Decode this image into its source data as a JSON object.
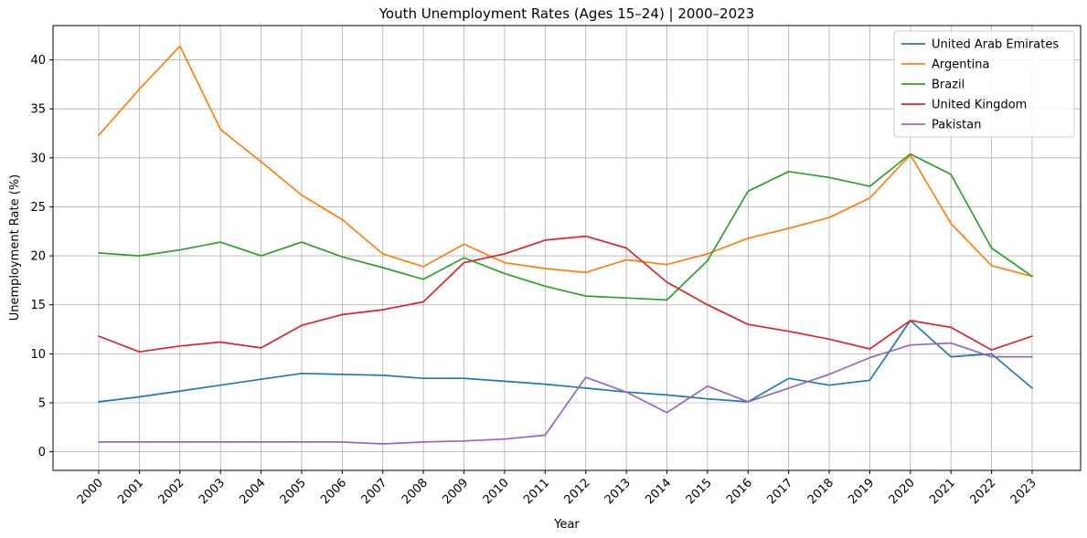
{
  "chart_data": {
    "type": "line",
    "title": "Youth Unemployment Rates (Ages 15–24) | 2000–2023",
    "xlabel": "Year",
    "ylabel": "Unemployment Rate (%)",
    "x": [
      "2000",
      "2001",
      "2002",
      "2003",
      "2004",
      "2005",
      "2006",
      "2007",
      "2008",
      "2009",
      "2010",
      "2011",
      "2012",
      "2013",
      "2014",
      "2015",
      "2016",
      "2017",
      "2018",
      "2019",
      "2020",
      "2021",
      "2022",
      "2023"
    ],
    "yticks": [
      "0",
      "5",
      "10",
      "15",
      "20",
      "25",
      "30",
      "35",
      "40"
    ],
    "ylim": [
      -1.9,
      43.5
    ],
    "grid": true,
    "legend_position": "top-right",
    "series": [
      {
        "name": "United Arab Emirates",
        "color": "#1f77b4",
        "values": [
          5.1,
          5.6,
          6.2,
          6.8,
          7.4,
          8.0,
          7.9,
          7.8,
          7.5,
          7.5,
          7.2,
          6.9,
          6.5,
          6.1,
          5.8,
          5.4,
          5.1,
          7.5,
          6.8,
          7.3,
          13.4,
          9.7,
          10.0,
          6.5
        ]
      },
      {
        "name": "Argentina",
        "color": "#ff7f0e",
        "values": [
          32.3,
          37.0,
          41.4,
          32.9,
          29.6,
          26.2,
          23.7,
          20.2,
          18.9,
          21.2,
          19.3,
          18.7,
          18.3,
          19.6,
          19.1,
          20.2,
          21.8,
          22.8,
          23.9,
          25.9,
          30.3,
          23.3,
          19.0,
          17.9
        ]
      },
      {
        "name": "Brazil",
        "color": "#2ca02c",
        "values": [
          20.3,
          20.0,
          20.6,
          21.4,
          20.0,
          21.4,
          19.9,
          18.8,
          17.6,
          19.8,
          18.2,
          16.9,
          15.9,
          15.7,
          15.5,
          19.5,
          26.6,
          28.6,
          28.0,
          27.1,
          30.4,
          28.3,
          20.8,
          17.9
        ]
      },
      {
        "name": "United Kingdom",
        "color": "#d62728",
        "values": [
          11.8,
          10.2,
          10.8,
          11.2,
          10.6,
          12.9,
          14.0,
          14.5,
          15.3,
          19.3,
          20.2,
          21.6,
          22.0,
          20.8,
          17.3,
          15.0,
          13.0,
          12.3,
          11.5,
          10.5,
          13.4,
          12.7,
          10.4,
          11.8
        ]
      },
      {
        "name": "Pakistan",
        "color": "#9467bd",
        "values": [
          1.0,
          1.0,
          1.0,
          1.0,
          1.0,
          1.0,
          1.0,
          0.8,
          1.0,
          1.1,
          1.3,
          1.7,
          7.6,
          6.1,
          4.0,
          6.7,
          5.1,
          6.5,
          7.9,
          9.6,
          10.9,
          11.1,
          9.7,
          9.7
        ]
      }
    ]
  }
}
